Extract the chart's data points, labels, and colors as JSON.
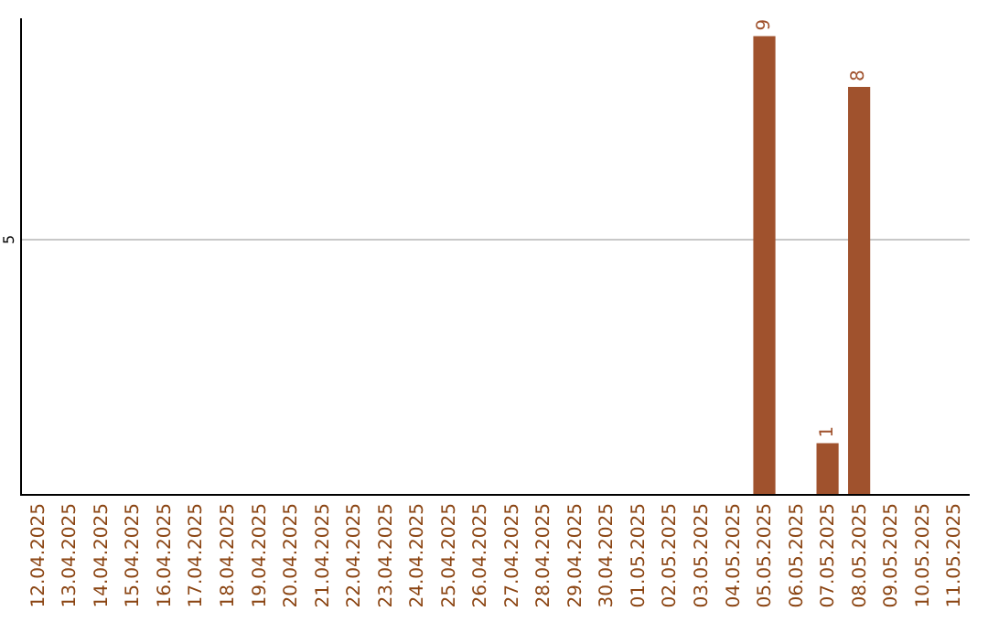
{
  "chart_data": {
    "type": "bar",
    "categories": [
      "12.04.2025",
      "13.04.2025",
      "14.04.2025",
      "15.04.2025",
      "16.04.2025",
      "17.04.2025",
      "18.04.2025",
      "19.04.2025",
      "20.04.2025",
      "21.04.2025",
      "22.04.2025",
      "23.04.2025",
      "24.04.2025",
      "25.04.2025",
      "26.04.2025",
      "27.04.2025",
      "28.04.2025",
      "29.04.2025",
      "30.04.2025",
      "01.05.2025",
      "02.05.2025",
      "03.05.2025",
      "04.05.2025",
      "05.05.2025",
      "06.05.2025",
      "07.05.2025",
      "08.05.2025",
      "09.05.2025",
      "10.05.2025",
      "11.05.2025"
    ],
    "values": [
      null,
      null,
      null,
      null,
      null,
      null,
      null,
      null,
      null,
      null,
      null,
      null,
      null,
      null,
      null,
      null,
      null,
      null,
      null,
      null,
      null,
      null,
      null,
      9,
      null,
      1,
      8,
      null,
      null,
      null
    ],
    "data_labels": true,
    "color": "#a0522d",
    "ylim": [
      0,
      9.35
    ],
    "ref_lines": [
      {
        "axis": "y",
        "value": 5,
        "label": "5",
        "color": "#c8c8c8"
      }
    ]
  }
}
